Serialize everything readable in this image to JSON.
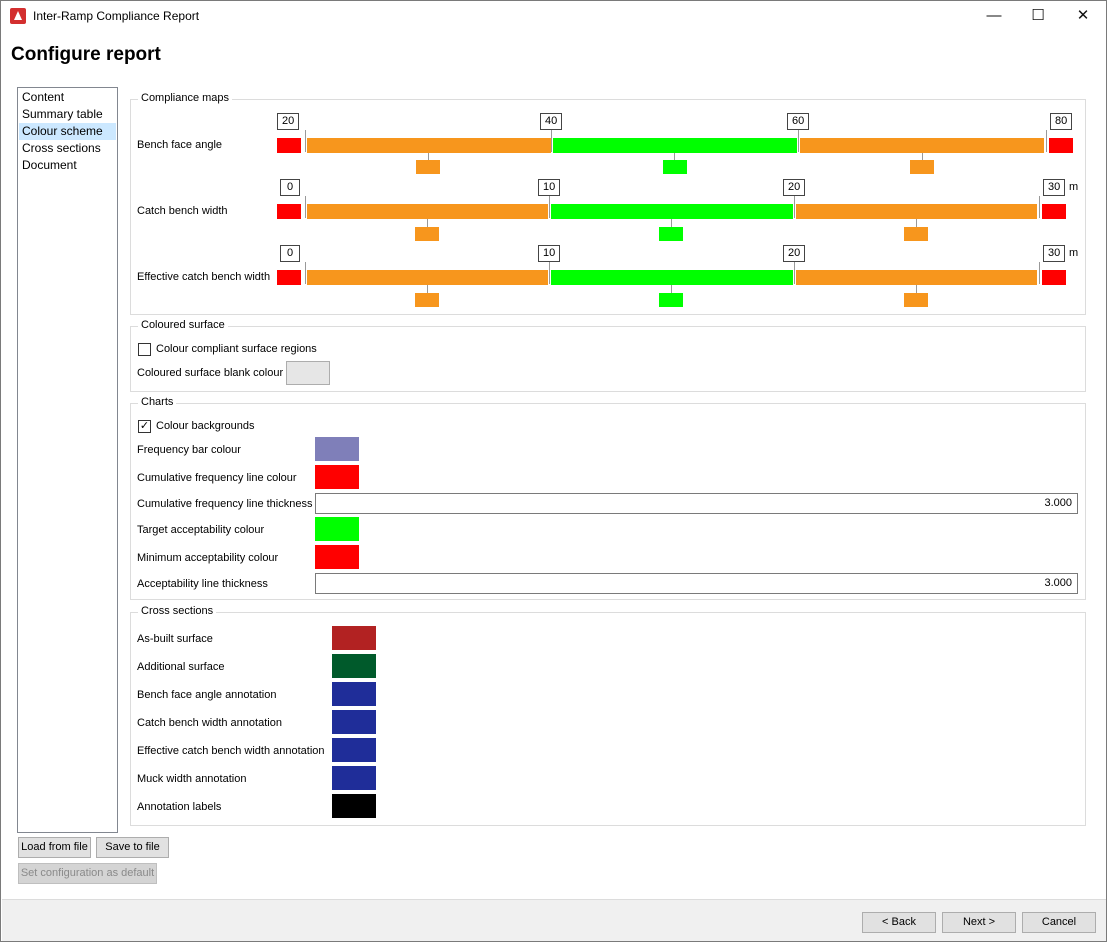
{
  "window": {
    "title": "Inter-Ramp Compliance Report",
    "minimize_glyph": "—",
    "maximize_glyph": "☐",
    "close_glyph": "✕"
  },
  "heading": "Configure report",
  "nav": {
    "items": [
      "Content",
      "Summary table",
      "Colour scheme",
      "Cross sections",
      "Document"
    ],
    "selected": "Colour scheme"
  },
  "compliance_maps": {
    "title": "Compliance maps",
    "rows": [
      {
        "label": "Bench face angle",
        "ticks": [
          "20",
          "40",
          "60",
          "80"
        ],
        "unit": ""
      },
      {
        "label": "Catch bench width",
        "ticks": [
          "0",
          "10",
          "20",
          "30"
        ],
        "unit": "m"
      },
      {
        "label": "Effective catch bench width",
        "ticks": [
          "0",
          "10",
          "20",
          "30"
        ],
        "unit": "m"
      }
    ],
    "colors": {
      "red": "#ff0000",
      "orange": "#f7961d",
      "green": "#00ff00"
    }
  },
  "coloured_surface": {
    "title": "Coloured surface",
    "checkbox_label": "Colour compliant surface regions",
    "checked": false,
    "blank_colour_label": "Coloured surface blank colour",
    "blank_colour": "#e6e6e6"
  },
  "charts": {
    "title": "Charts",
    "checkbox_label": "Colour backgrounds",
    "checked": true,
    "check_glyph": "✓",
    "frequency_bar_label": "Frequency bar colour",
    "frequency_bar_colour": "#7f7fb9",
    "cum_line_label": "Cumulative frequency line colour",
    "cum_line_colour": "#ff0000",
    "cum_thickness_label": "Cumulative frequency line thickness",
    "cum_thickness_value": "3.000",
    "target_label": "Target acceptability colour",
    "target_colour": "#00ff00",
    "minimum_label": "Minimum acceptability colour",
    "minimum_colour": "#ff0000",
    "accept_thickness_label": "Acceptability line thickness",
    "accept_thickness_value": "3.000"
  },
  "cross_sections": {
    "title": "Cross sections",
    "items": [
      {
        "label": "As-built surface",
        "colour": "#b22222"
      },
      {
        "label": "Additional surface",
        "colour": "#005a2b"
      },
      {
        "label": "Bench face angle annotation",
        "colour": "#1f2d99"
      },
      {
        "label": "Catch bench width annotation",
        "colour": "#1f2d99"
      },
      {
        "label": "Effective catch bench width annotation",
        "colour": "#1f2d99"
      },
      {
        "label": "Muck width annotation",
        "colour": "#1f2d99"
      },
      {
        "label": "Annotation labels",
        "colour": "#000000"
      }
    ]
  },
  "buttons": {
    "load": "Load from file",
    "save": "Save to file",
    "set_default": "Set configuration as default",
    "back": "< Back",
    "next": "Next >",
    "cancel": "Cancel"
  }
}
